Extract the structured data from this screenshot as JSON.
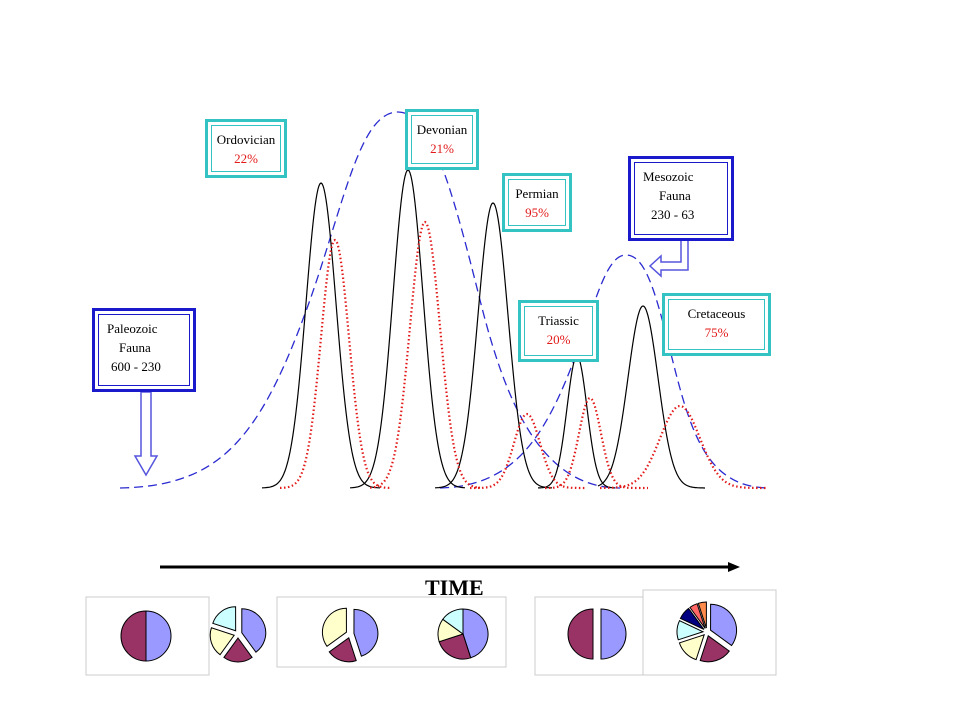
{
  "boxes": {
    "ordovician": {
      "name": "Ordovician",
      "pct": "22%"
    },
    "devonian": {
      "name": "Devonian",
      "pct": "21%"
    },
    "permian": {
      "name": "Permian",
      "pct": "95%"
    },
    "triassic": {
      "name": "Triassic",
      "pct": "20%"
    },
    "cretaceous": {
      "name": "Cretaceous",
      "pct": "75%"
    },
    "paleozoic": {
      "line1": "Paleozoic",
      "line2": "Fauna",
      "line3": "600 - 230"
    },
    "mesozoic": {
      "line1": "Mesozoic",
      "line2": "Fauna",
      "line3": "230 - 63"
    }
  },
  "time_label": "TIME",
  "colors": {
    "teal_border": "#33c3c3",
    "blue_border": "#1a1acc",
    "dashed_curve": "#2a2ad0",
    "dotted_curve": "#e21a1a",
    "solid_curve": "#000000",
    "percent_text": "#e21a1a",
    "pie_purple": "#993366",
    "pie_blue": "#9999ff",
    "pie_yellow": "#ffffcc",
    "pie_cyan": "#ccffff",
    "pie_red": "#ff6666",
    "pie_navy": "#000080",
    "pie_orange": "#ff8c4c"
  },
  "pies": [
    {
      "slices": [
        50,
        50
      ],
      "colors": [
        "#9999ff",
        "#993366"
      ],
      "exploded": false
    },
    {
      "slices": [
        40,
        20,
        20,
        20
      ],
      "colors": [
        "#9999ff",
        "#993366",
        "#ffffcc",
        "#ccffff"
      ],
      "exploded": true
    },
    {
      "slices": [
        45,
        20,
        35
      ],
      "colors": [
        "#9999ff",
        "#993366",
        "#ffffcc"
      ],
      "exploded": true
    },
    {
      "slices": [
        45,
        25,
        15,
        15
      ],
      "colors": [
        "#9999ff",
        "#993366",
        "#ffffcc",
        "#ccffff"
      ],
      "exploded": false
    },
    {
      "slices": [
        50,
        50
      ],
      "colors": [
        "#9999ff",
        "#993366"
      ],
      "exploded": true
    },
    {
      "slices": [
        35,
        20,
        15,
        12,
        8,
        5,
        5
      ],
      "colors": [
        "#9999ff",
        "#993366",
        "#ffffcc",
        "#ccffff",
        "#000080",
        "#ff6666",
        "#ff8c4c"
      ],
      "exploded": true
    }
  ]
}
